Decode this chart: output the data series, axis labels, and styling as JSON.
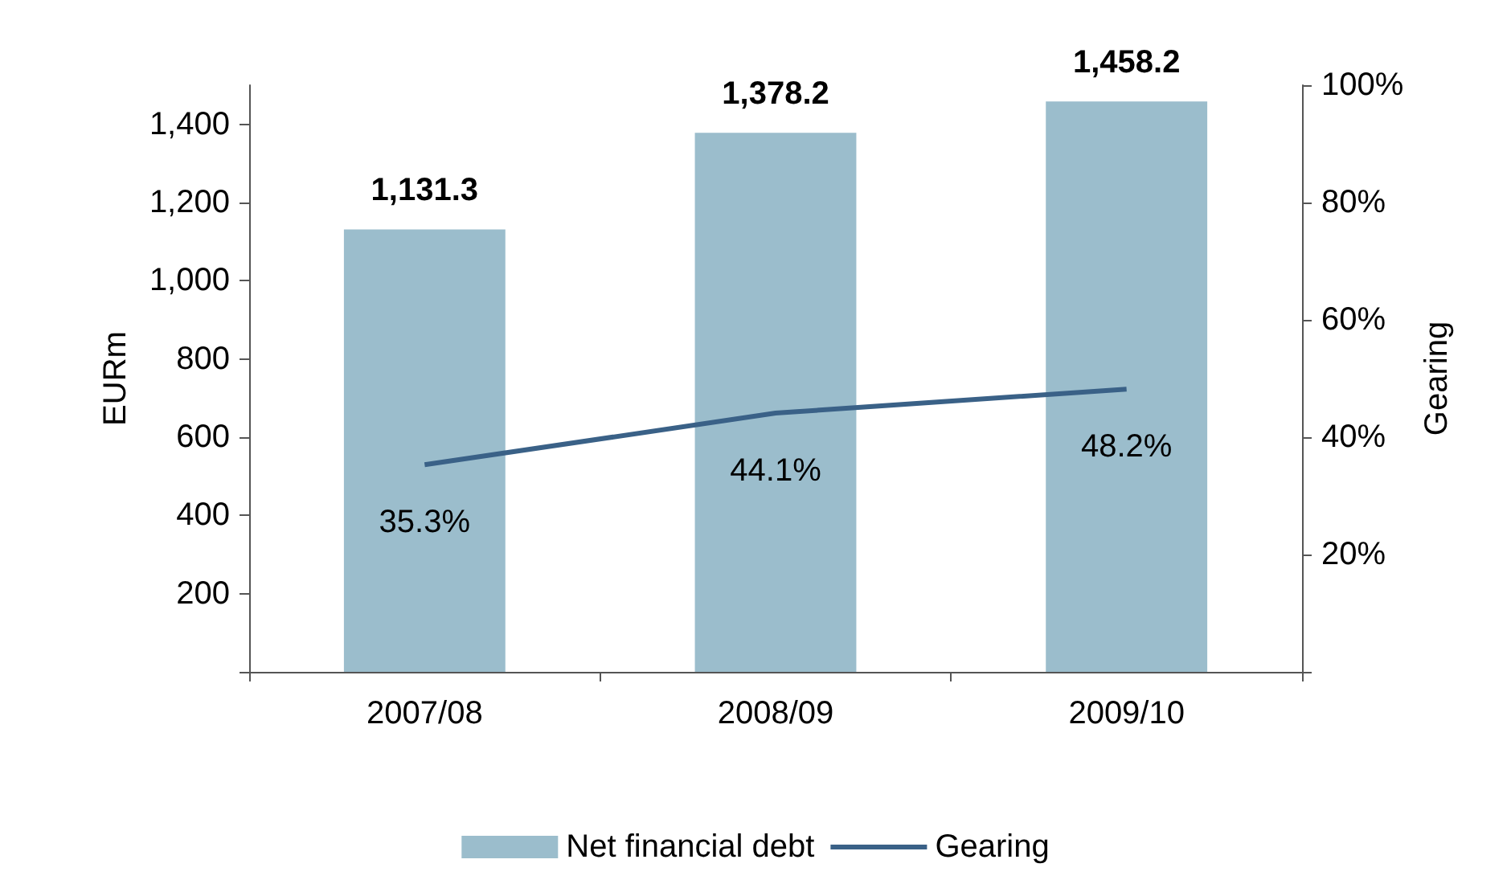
{
  "chart_data": {
    "type": "bar",
    "ylabel": "EURm",
    "y2label": "Gearing",
    "categories": [
      "2007/08",
      "2008/09",
      "2009/10"
    ],
    "series": [
      {
        "name": "Net financial debt",
        "color": "#9bbdcc",
        "values": [
          1131.3,
          1378.2,
          1458.2
        ],
        "value_labels": [
          "1,131.3",
          "1,378.2",
          "1,458.2"
        ]
      },
      {
        "name": "Gearing",
        "type": "line",
        "axis": "y2",
        "color": "#3a6187",
        "values": [
          35.3,
          44.1,
          48.2
        ],
        "value_labels": [
          "35.3%",
          "44.1%",
          "48.2%"
        ]
      }
    ],
    "ylim": [
      0,
      1500
    ],
    "yticks": [
      {
        "value": 0,
        "label": null
      },
      {
        "value": 200,
        "label": "200"
      },
      {
        "value": 400,
        "label": "400"
      },
      {
        "value": 600,
        "label": "600"
      },
      {
        "value": 800,
        "label": "800"
      },
      {
        "value": 1000,
        "label": "1,000"
      },
      {
        "value": 1200,
        "label": "1,200"
      },
      {
        "value": 1400,
        "label": "1,400"
      }
    ],
    "y2lim": [
      0,
      100
    ],
    "y2ticks": [
      {
        "value": 0,
        "label": null
      },
      {
        "value": 20,
        "label": "20%"
      },
      {
        "value": 40,
        "label": "40%"
      },
      {
        "value": 60,
        "label": "60%"
      },
      {
        "value": 80,
        "label": "80%"
      },
      {
        "value": 100,
        "label": "100%"
      }
    ],
    "legend": "bottom",
    "grid": false,
    "marker": "none"
  }
}
